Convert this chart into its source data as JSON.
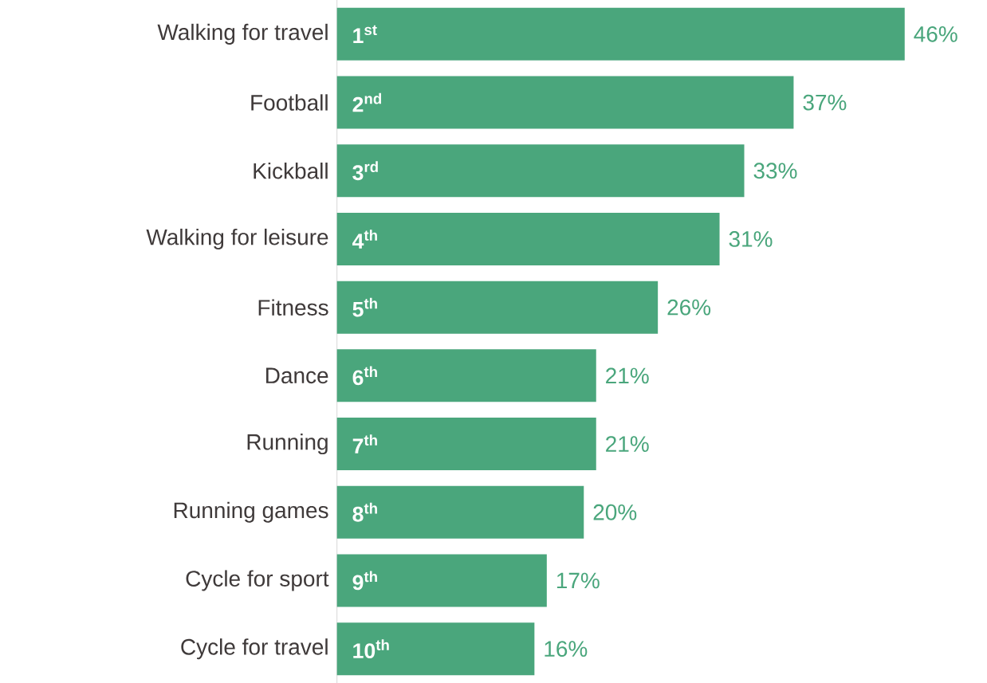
{
  "chart_data": {
    "type": "bar",
    "orientation": "horizontal",
    "categories": [
      "Walking for travel",
      "Football",
      "Kickball",
      "Walking for leisure",
      "Fitness",
      "Dance",
      "Running",
      "Running games",
      "Cycle for sport",
      "Cycle for travel"
    ],
    "values": [
      46,
      37,
      33,
      31,
      26,
      21,
      21,
      20,
      17,
      16
    ],
    "color": "#4aa67c",
    "value_labels": [
      "46%",
      "37%",
      "33%",
      "31%",
      "26%",
      "21%",
      "21%",
      "20%",
      "17%",
      "16%"
    ],
    "annotations": [
      {
        "text": "1$^{st}$",
        "y": "Walking for travel"
      },
      {
        "text": "2$^{nd}$",
        "y": "Football"
      },
      {
        "text": "3$^{rd}$",
        "y": "Kickball"
      },
      {
        "text": "4$^{th}$",
        "y": "Walking for leisure"
      },
      {
        "text": "5$^{th}$",
        "y": "Fitness"
      },
      {
        "text": "6$^{th}$",
        "y": "Dance"
      },
      {
        "text": "7$^{th}$",
        "y": "Running"
      },
      {
        "text": "8$^{th}$",
        "y": "Running games"
      },
      {
        "text": "9$^{th}$",
        "y": "Cycle for sport"
      },
      {
        "text": "10$^{th}$",
        "y": "Cycle for travel"
      }
    ]
  }
}
